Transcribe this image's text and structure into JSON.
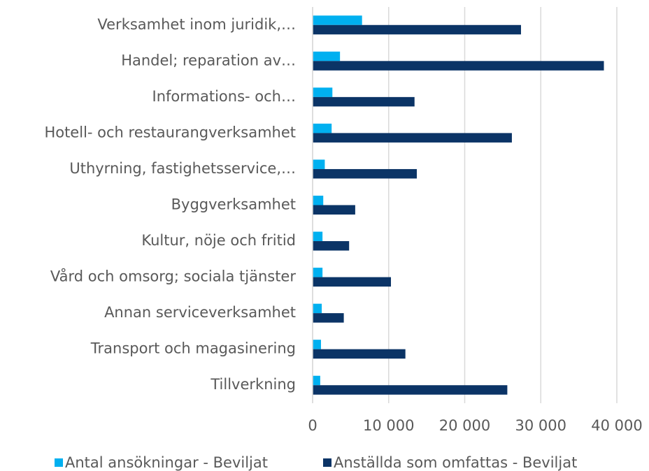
{
  "chart_data": {
    "type": "barh",
    "categories": [
      "Verksamhet inom juridik,…",
      "Handel; reparation av…",
      "Informations- och…",
      "Hotell- och restaurangverksamhet",
      "Uthyrning, fastighetsservice,…",
      "Byggverksamhet",
      "Kultur, nöje och fritid",
      "Vård och omsorg; sociala tjänster",
      "Annan serviceverksamhet",
      "Transport och magasinering",
      "Tillverkning"
    ],
    "series": [
      {
        "name": "Antal ansökningar - Beviljat",
        "color": "#00b0f0",
        "values": [
          6500,
          3600,
          2600,
          2500,
          1600,
          1400,
          1300,
          1300,
          1200,
          1100,
          1000
        ]
      },
      {
        "name": "Anställda som omfattas - Beviljat",
        "color": "#0b3466",
        "values": [
          27400,
          38300,
          13400,
          26200,
          13700,
          5600,
          4800,
          10300,
          4100,
          12200,
          25600
        ]
      }
    ],
    "xlim": [
      0,
      40000
    ],
    "xticks": [
      0,
      {
        "value": 10000,
        "label": "10 000"
      },
      {
        "value": 20000,
        "label": "20 000"
      },
      {
        "value": 30000,
        "label": "30 000"
      },
      {
        "value": 40000,
        "label": "40 000"
      }
    ],
    "grid": true,
    "legend": "bottom"
  }
}
